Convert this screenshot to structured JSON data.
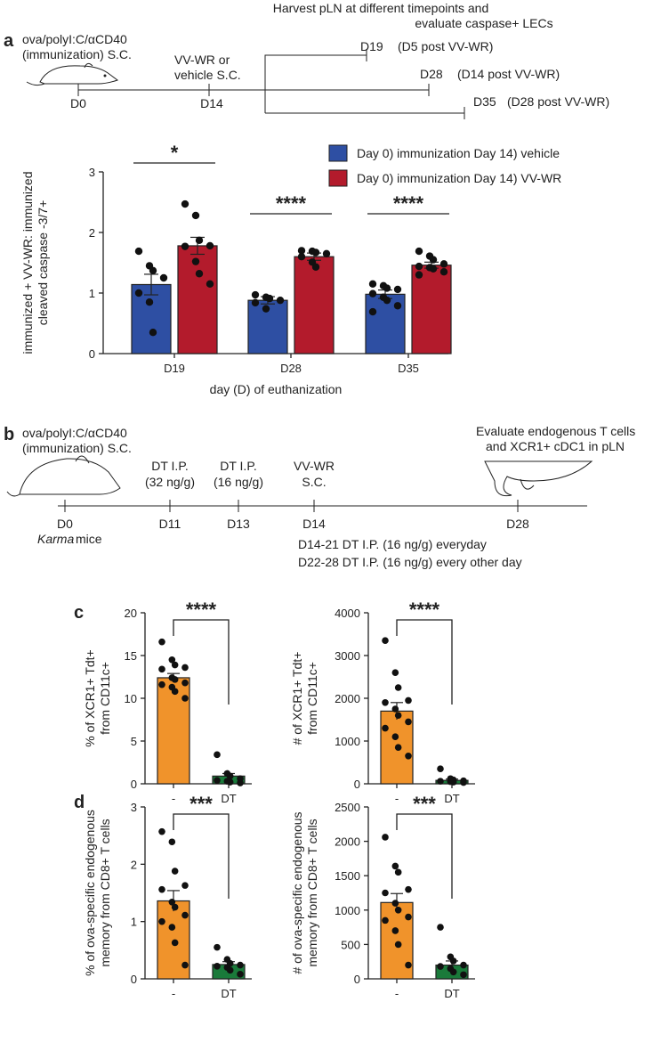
{
  "panel_a": {
    "letter": "a",
    "harvest_text": [
      "Harvest pLN at different timepoints and",
      "evaluate caspase+ LECs"
    ],
    "immunization_text": [
      "ova/polyI:C/αCD40",
      "(immunization) S.C."
    ],
    "vv_text": [
      "VV-WR or",
      "vehicle S.C."
    ],
    "day0": "D0",
    "day14": "D14",
    "harvests": [
      {
        "day": "D19",
        "note": "(D5 post VV-WR)"
      },
      {
        "day": "D28",
        "note": "(D14 post VV-WR)"
      },
      {
        "day": "D35",
        "note": "(D28 post VV-WR)"
      }
    ]
  },
  "panel_b": {
    "letter": "b",
    "immunization_text": [
      "ova/polyI:C/αCD40",
      "(immunization) S.C."
    ],
    "evaluate_text": [
      "Evaluate endogenous T cells",
      "and XCR1+ cDC1 in pLN"
    ],
    "events": [
      {
        "day": "D0",
        "label": []
      },
      {
        "day": "D11",
        "label": [
          "DT I.P.",
          "(32 ng/g)"
        ]
      },
      {
        "day": "D13",
        "label": [
          "DT I.P.",
          "(16 ng/g)"
        ]
      },
      {
        "day": "D14",
        "label": [
          "VV-WR",
          "S.C."
        ]
      },
      {
        "day": "D28",
        "label": []
      }
    ],
    "mice_italic": "Karma",
    "mice_rest": " mice",
    "notes": [
      "D14-21 DT I.P. (16 ng/g) everyday",
      "D22-28 DT I.P. (16 ng/g) every other day"
    ]
  },
  "panel_c": {
    "letter": "c"
  },
  "panel_d": {
    "letter": "d"
  },
  "colors": {
    "blue": "#2e4fa3",
    "red": "#b31b2c",
    "orange": "#f0932b",
    "green": "#1a7a3a",
    "black": "#1a1a1a"
  },
  "chart_data": [
    {
      "id": "a",
      "type": "bar",
      "ylabel": "immunized + VV-WR: immunized cleaved caspase -3/7+",
      "ylabel_lines": [
        "immunized + VV-WR: immunized",
        "cleaved caspase -3/7+"
      ],
      "xlabel": "day (D) of euthanization",
      "ylim": [
        0,
        3
      ],
      "yticks": [
        0,
        1,
        2,
        3
      ],
      "categories": [
        "D19",
        "D28",
        "D35"
      ],
      "legend": [
        {
          "name": "Day 0) immunization Day 14) vehicle",
          "color": "#2e4fa3"
        },
        {
          "name": "Day 0) immunization Day 14) VV-WR",
          "color": "#b31b2c"
        }
      ],
      "series": [
        {
          "name": "Day 0) immunization Day 14) vehicle",
          "color": "#2e4fa3",
          "values": [
            1.14,
            0.88,
            0.98
          ],
          "sem": [
            0.17,
            0.06,
            0.07
          ],
          "points": [
            [
              1.69,
              1.45,
              1.37,
              1.25,
              1.0,
              0.85,
              0.35
            ],
            [
              0.97,
              0.93,
              0.91,
              0.88,
              0.84,
              0.74
            ],
            [
              1.15,
              1.12,
              1.08,
              1.06,
              0.99,
              0.93,
              0.88,
              0.79,
              0.69
            ]
          ]
        },
        {
          "name": "Day 0) immunization Day 14) VV-WR",
          "color": "#b31b2c",
          "values": [
            1.78,
            1.6,
            1.46
          ],
          "sem": [
            0.14,
            0.06,
            0.05
          ],
          "points": [
            [
              2.47,
              2.28,
              1.87,
              1.78,
              1.77,
              1.52,
              1.32,
              1.15
            ],
            [
              1.7,
              1.69,
              1.67,
              1.65,
              1.6,
              1.51,
              1.43
            ],
            [
              1.69,
              1.61,
              1.55,
              1.48,
              1.44,
              1.42,
              1.4,
              1.35,
              1.3
            ]
          ]
        }
      ],
      "significance": [
        "*",
        "****",
        "****"
      ]
    },
    {
      "id": "c1",
      "type": "bar",
      "ylabel_lines": [
        "% of XCR1+ Tdt+",
        "from CD11c+"
      ],
      "ylim": [
        0,
        20
      ],
      "yticks": [
        0,
        5,
        10,
        15,
        20
      ],
      "categories": [
        "-",
        "DT"
      ],
      "colors": [
        "#f0932b",
        "#1a7a3a"
      ],
      "values": [
        12.4,
        0.9
      ],
      "sem": [
        0.5,
        0.3
      ],
      "points": [
        [
          16.6,
          14.5,
          13.9,
          13.6,
          13.4,
          12.4,
          12.2,
          11.8,
          11.6,
          11.3,
          10.8,
          10.0
        ],
        [
          3.4,
          1.2,
          0.9,
          0.6,
          0.4,
          0.3,
          0.2,
          0.1
        ]
      ],
      "significance": "****"
    },
    {
      "id": "c2",
      "type": "bar",
      "ylabel_lines": [
        "# of XCR1+ Tdt+",
        "from CD11c+"
      ],
      "ylim": [
        0,
        4000
      ],
      "yticks": [
        0,
        1000,
        2000,
        3000,
        4000
      ],
      "categories": [
        "-",
        "DT"
      ],
      "colors": [
        "#f0932b",
        "#1a7a3a"
      ],
      "values": [
        1700,
        80
      ],
      "sem": [
        200,
        30
      ],
      "points": [
        [
          3350,
          2600,
          2250,
          1950,
          1900,
          1750,
          1600,
          1450,
          1300,
          1100,
          850,
          650
        ],
        [
          350,
          120,
          90,
          70,
          60,
          50,
          40,
          30
        ]
      ],
      "significance": "****"
    },
    {
      "id": "d1",
      "type": "bar",
      "ylabel_lines": [
        "% of ova-specific endogenous",
        "memory  from CD8+ T cells"
      ],
      "ylim": [
        0,
        3
      ],
      "yticks": [
        0,
        1,
        2,
        3
      ],
      "categories": [
        "-",
        "DT"
      ],
      "colors": [
        "#f0932b",
        "#1a7a3a"
      ],
      "values": [
        1.36,
        0.25
      ],
      "sem": [
        0.18,
        0.05
      ],
      "points": [
        [
          2.57,
          2.39,
          1.88,
          1.63,
          1.56,
          1.34,
          1.25,
          1.11,
          1.0,
          0.9,
          0.63,
          0.24
        ],
        [
          0.55,
          0.34,
          0.27,
          0.24,
          0.22,
          0.2,
          0.15,
          0.08
        ]
      ],
      "significance": "***"
    },
    {
      "id": "d2",
      "type": "bar",
      "ylabel_lines": [
        "# of ova-specific endogenous",
        "memory  from CD8+ T cells"
      ],
      "ylim": [
        0,
        2500
      ],
      "yticks": [
        0,
        500,
        1000,
        1500,
        2000,
        2500
      ],
      "categories": [
        "-",
        "DT"
      ],
      "colors": [
        "#f0932b",
        "#1a7a3a"
      ],
      "values": [
        1110,
        200
      ],
      "sem": [
        130,
        60
      ],
      "points": [
        [
          2060,
          1640,
          1550,
          1300,
          1250,
          1100,
          1000,
          900,
          850,
          700,
          500,
          200
        ],
        [
          750,
          320,
          260,
          200,
          180,
          150,
          100,
          60
        ]
      ],
      "significance": "***"
    }
  ]
}
